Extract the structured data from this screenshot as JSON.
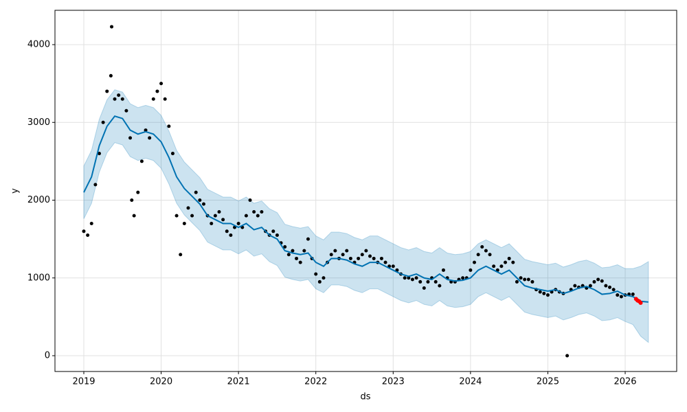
{
  "chart_data": {
    "type": "forecast",
    "x_label": "ds",
    "y_label": "y",
    "xlim": [
      2018.627,
      2026.666
    ],
    "ylim": [
      -203,
      4441.5
    ],
    "xticks": [
      2019,
      2020,
      2021,
      2022,
      2023,
      2024,
      2025,
      2026
    ],
    "yticks": [
      0,
      1000,
      2000,
      3000,
      4000
    ],
    "grid": true,
    "observed": {
      "color": "#000000",
      "x": [
        2019.0,
        2019.05,
        2019.1,
        2019.15,
        2019.2,
        2019.25,
        2019.3,
        2019.35,
        2019.36,
        2019.4,
        2019.45,
        2019.5,
        2019.55,
        2019.6,
        2019.62,
        2019.65,
        2019.7,
        2019.75,
        2019.8,
        2019.85,
        2019.9,
        2019.95,
        2020.0,
        2020.05,
        2020.1,
        2020.15,
        2020.2,
        2020.25,
        2020.3,
        2020.35,
        2020.4,
        2020.45,
        2020.5,
        2020.55,
        2020.6,
        2020.65,
        2020.7,
        2020.75,
        2020.8,
        2020.85,
        2020.9,
        2020.95,
        2021.0,
        2021.05,
        2021.1,
        2021.15,
        2021.2,
        2021.25,
        2021.3,
        2021.35,
        2021.4,
        2021.45,
        2021.5,
        2021.55,
        2021.6,
        2021.65,
        2021.7,
        2021.75,
        2021.8,
        2021.85,
        2021.9,
        2021.95,
        2022.0,
        2022.05,
        2022.1,
        2022.15,
        2022.2,
        2022.25,
        2022.3,
        2022.35,
        2022.4,
        2022.45,
        2022.5,
        2022.55,
        2022.6,
        2022.65,
        2022.7,
        2022.75,
        2022.8,
        2022.85,
        2022.9,
        2022.95,
        2023.0,
        2023.05,
        2023.1,
        2023.15,
        2023.2,
        2023.25,
        2023.3,
        2023.35,
        2023.4,
        2023.45,
        2023.5,
        2023.55,
        2023.6,
        2023.65,
        2023.7,
        2023.75,
        2023.8,
        2023.85,
        2023.9,
        2023.95,
        2024.0,
        2024.05,
        2024.1,
        2024.15,
        2024.2,
        2024.25,
        2024.3,
        2024.35,
        2024.4,
        2024.45,
        2024.5,
        2024.55,
        2024.6,
        2024.65,
        2024.7,
        2024.75,
        2024.8,
        2024.85,
        2024.9,
        2024.95,
        2025.0,
        2025.05,
        2025.1,
        2025.15,
        2025.2,
        2025.25,
        2025.3,
        2025.35,
        2025.4,
        2025.45,
        2025.5,
        2025.55,
        2025.6,
        2025.65,
        2025.7,
        2025.75,
        2025.8,
        2025.85,
        2025.9,
        2025.95,
        2026.0,
        2026.05,
        2026.1
      ],
      "values": [
        1600,
        1550,
        1700,
        2200,
        2600,
        3000,
        3400,
        3600,
        4230,
        3300,
        3350,
        3300,
        3150,
        2800,
        2000,
        1800,
        2100,
        2500,
        2900,
        2800,
        3300,
        3400,
        3500,
        3300,
        2950,
        2600,
        1800,
        1300,
        1700,
        1900,
        1800,
        2100,
        2000,
        1950,
        1800,
        1700,
        1800,
        1850,
        1750,
        1600,
        1550,
        1650,
        1700,
        1650,
        1800,
        2000,
        1850,
        1800,
        1850,
        1600,
        1550,
        1600,
        1550,
        1450,
        1400,
        1300,
        1350,
        1250,
        1200,
        1350,
        1500,
        1250,
        1050,
        950,
        1000,
        1200,
        1300,
        1350,
        1250,
        1300,
        1350,
        1250,
        1200,
        1250,
        1300,
        1350,
        1280,
        1250,
        1200,
        1250,
        1200,
        1150,
        1150,
        1100,
        1050,
        1000,
        1000,
        980,
        1000,
        950,
        870,
        950,
        1000,
        950,
        900,
        1100,
        1000,
        950,
        950,
        980,
        1000,
        1000,
        1100,
        1200,
        1300,
        1400,
        1350,
        1300,
        1150,
        1100,
        1150,
        1200,
        1250,
        1200,
        950,
        1000,
        980,
        980,
        950,
        850,
        820,
        800,
        780,
        820,
        850,
        820,
        800,
        0,
        850,
        900,
        880,
        900,
        870,
        900,
        950,
        980,
        960,
        900,
        880,
        850,
        780,
        760,
        780,
        790,
        790
      ]
    },
    "actual_future": {
      "color": "#ff0000",
      "x": [
        2026.14,
        2026.16,
        2026.18,
        2026.2
      ],
      "values": [
        730,
        710,
        700,
        680
      ]
    },
    "forecast": {
      "color": "#0072B2",
      "band_color": "#0072B2",
      "x": [
        2019.0,
        2019.1,
        2019.2,
        2019.3,
        2019.4,
        2019.5,
        2019.6,
        2019.7,
        2019.8,
        2019.9,
        2020.0,
        2020.1,
        2020.2,
        2020.3,
        2020.4,
        2020.5,
        2020.6,
        2020.7,
        2020.8,
        2020.9,
        2021.0,
        2021.1,
        2021.2,
        2021.3,
        2021.4,
        2021.5,
        2021.6,
        2021.7,
        2021.8,
        2021.9,
        2022.0,
        2022.1,
        2022.2,
        2022.3,
        2022.4,
        2022.5,
        2022.6,
        2022.7,
        2022.8,
        2022.9,
        2023.0,
        2023.1,
        2023.2,
        2023.3,
        2023.4,
        2023.5,
        2023.6,
        2023.7,
        2023.8,
        2023.9,
        2024.0,
        2024.1,
        2024.2,
        2024.3,
        2024.4,
        2024.5,
        2024.6,
        2024.7,
        2024.8,
        2024.9,
        2025.0,
        2025.1,
        2025.2,
        2025.3,
        2025.4,
        2025.5,
        2025.6,
        2025.7,
        2025.8,
        2025.9,
        2026.0,
        2026.1,
        2026.2,
        2026.3
      ],
      "values": [
        2100,
        2300,
        2700,
        2950,
        3080,
        3050,
        2900,
        2850,
        2880,
        2850,
        2750,
        2550,
        2300,
        2150,
        2050,
        1950,
        1800,
        1750,
        1700,
        1700,
        1650,
        1700,
        1620,
        1650,
        1550,
        1500,
        1350,
        1320,
        1300,
        1320,
        1200,
        1150,
        1250,
        1250,
        1230,
        1180,
        1150,
        1200,
        1200,
        1150,
        1100,
        1050,
        1020,
        1050,
        1000,
        980,
        1050,
        980,
        960,
        970,
        1000,
        1100,
        1150,
        1100,
        1050,
        1100,
        1000,
        900,
        870,
        850,
        830,
        850,
        800,
        830,
        870,
        890,
        850,
        790,
        800,
        830,
        780,
        760,
        700,
        690
      ],
      "upper": [
        2440,
        2640,
        3040,
        3290,
        3420,
        3390,
        3240,
        3190,
        3220,
        3190,
        3090,
        2890,
        2640,
        2490,
        2390,
        2290,
        2140,
        2090,
        2040,
        2040,
        1990,
        2040,
        1960,
        1990,
        1890,
        1840,
        1690,
        1660,
        1640,
        1660,
        1540,
        1490,
        1590,
        1590,
        1570,
        1520,
        1490,
        1540,
        1540,
        1490,
        1440,
        1390,
        1360,
        1390,
        1340,
        1320,
        1390,
        1320,
        1300,
        1310,
        1340,
        1440,
        1490,
        1440,
        1390,
        1440,
        1340,
        1240,
        1210,
        1190,
        1170,
        1190,
        1140,
        1170,
        1210,
        1230,
        1190,
        1130,
        1140,
        1170,
        1120,
        1120,
        1150,
        1210
      ],
      "lower": [
        1760,
        1960,
        2360,
        2610,
        2740,
        2710,
        2560,
        2510,
        2540,
        2510,
        2410,
        2210,
        1960,
        1810,
        1710,
        1610,
        1460,
        1410,
        1360,
        1360,
        1310,
        1360,
        1280,
        1310,
        1210,
        1160,
        1010,
        980,
        960,
        980,
        860,
        810,
        910,
        910,
        890,
        840,
        810,
        860,
        860,
        810,
        760,
        710,
        680,
        710,
        660,
        640,
        710,
        640,
        620,
        630,
        660,
        760,
        810,
        760,
        710,
        760,
        660,
        560,
        530,
        510,
        490,
        510,
        460,
        490,
        530,
        550,
        510,
        450,
        460,
        490,
        440,
        400,
        250,
        170
      ]
    }
  }
}
